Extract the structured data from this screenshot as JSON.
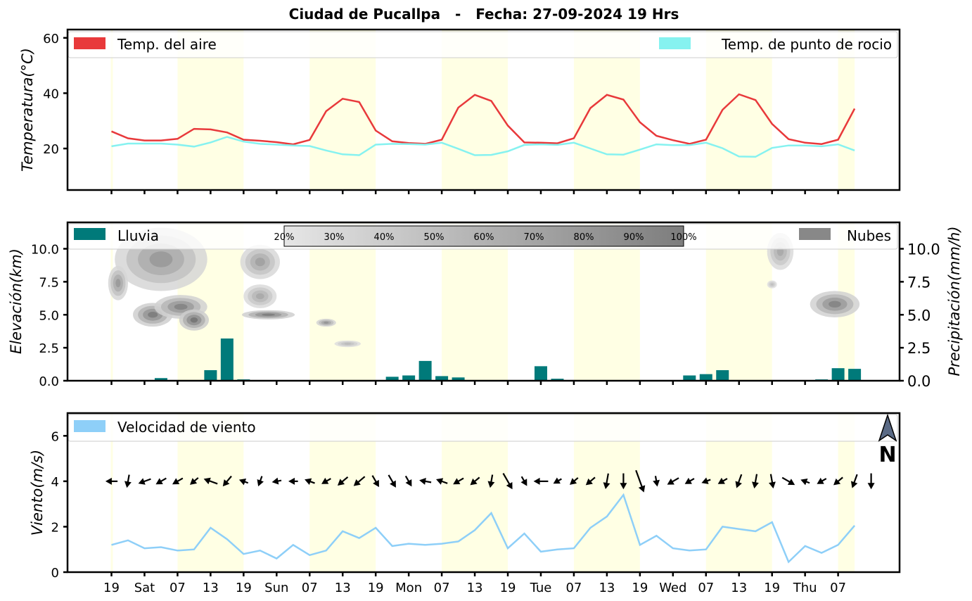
{
  "title": "Ciudad de Pucallpa   -   Fecha: 27-09-2024 19 Hrs",
  "x_ticks": [
    "19",
    "Sat",
    "07",
    "13",
    "19",
    "Sun",
    "07",
    "13",
    "19",
    "Mon",
    "07",
    "13",
    "19",
    "Tue",
    "07",
    "13",
    "19",
    "Wed",
    "07",
    "13",
    "19",
    "Thu",
    "07"
  ],
  "chart_data": [
    {
      "type": "line",
      "ylabel": "Temperatura(°C)",
      "ylim": [
        5,
        63
      ],
      "y_ticks": [
        20,
        40,
        60
      ],
      "legend": {
        "left": "Temp. del aire",
        "right": "Temp. de punto de rocio"
      },
      "colors": {
        "air": "#e8393b",
        "dew": "#86f2f0",
        "band": "#ffffe4"
      },
      "series": [
        {
          "name": "Temp. del aire",
          "values": [
            26.2,
            23.7,
            22.9,
            22.9,
            23.5,
            27.1,
            26.9,
            25.8,
            23.2,
            22.8,
            22.3,
            21.5,
            23.1,
            33.5,
            38.0,
            36.8,
            26.5,
            22.6,
            22.0,
            21.7,
            23.2,
            34.8,
            39.4,
            37.2,
            28.3,
            22.2,
            22.1,
            21.9,
            23.7,
            34.6,
            39.4,
            37.7,
            29.5,
            24.6,
            23.0,
            21.7,
            23.2,
            34.0,
            39.6,
            37.5,
            28.9,
            23.4,
            22.1,
            21.6,
            23.2,
            34.4
          ]
        },
        {
          "name": "Temp. de punto de rocio",
          "values": [
            20.8,
            21.8,
            21.8,
            21.8,
            21.4,
            20.7,
            22.2,
            24.2,
            22.5,
            21.7,
            21.4,
            21.1,
            20.9,
            19.3,
            17.9,
            17.6,
            21.4,
            21.7,
            21.6,
            21.4,
            22.1,
            19.9,
            17.6,
            17.7,
            19.0,
            21.3,
            21.5,
            21.3,
            22.1,
            20.0,
            17.9,
            17.8,
            19.6,
            21.5,
            21.2,
            21.2,
            22.1,
            20.1,
            17.1,
            17.0,
            20.2,
            21.1,
            21.1,
            20.8,
            21.5,
            19.3
          ]
        }
      ]
    },
    {
      "type": "bar",
      "ylabel": "Elevación(km)",
      "ylabel_right": "Precipitación(mm/h)",
      "ylim": [
        0,
        12
      ],
      "y_ticks": [
        "0.0",
        "2.5",
        "5.0",
        "7.5",
        "10.0"
      ],
      "y_tick_values": [
        0,
        2.5,
        5,
        7.5,
        10
      ],
      "legend": {
        "left": "Lluvia",
        "right": "Nubes"
      },
      "colorbar_labels": [
        "20%",
        "30%",
        "40%",
        "50%",
        "60%",
        "70%",
        "80%",
        "90%",
        "100%"
      ],
      "colors": {
        "rain": "#007a7a",
        "cloud": "#888888"
      },
      "rain_values": [
        0,
        0,
        0,
        0.2,
        0,
        0,
        0.8,
        3.2,
        0.1,
        0,
        0,
        0,
        0,
        0,
        0,
        0,
        0,
        0.3,
        0.4,
        1.5,
        0.35,
        0.25,
        0,
        0,
        0,
        0,
        1.1,
        0.15,
        0,
        0,
        0,
        0,
        0,
        0,
        0,
        0.4,
        0.5,
        0.8,
        0,
        0,
        0,
        0,
        0,
        0.1,
        0.95,
        0.9
      ],
      "clouds": [
        {
          "x": 3.0,
          "y": 9.2,
          "rx": 2.8,
          "ry": 2.4,
          "d": 0.55
        },
        {
          "x": 2.5,
          "y": 5.0,
          "rx": 1.2,
          "ry": 0.9,
          "d": 0.75
        },
        {
          "x": 4.2,
          "y": 5.6,
          "rx": 1.6,
          "ry": 0.9,
          "d": 0.7
        },
        {
          "x": 5.0,
          "y": 4.6,
          "rx": 0.9,
          "ry": 0.8,
          "d": 0.8
        },
        {
          "x": 0.4,
          "y": 7.4,
          "rx": 0.6,
          "ry": 1.3,
          "d": 0.55
        },
        {
          "x": 9.0,
          "y": 9.0,
          "rx": 1.2,
          "ry": 1.3,
          "d": 0.5
        },
        {
          "x": 9.0,
          "y": 6.4,
          "rx": 1.0,
          "ry": 0.9,
          "d": 0.45
        },
        {
          "x": 9.5,
          "y": 5.0,
          "rx": 1.6,
          "ry": 0.35,
          "d": 0.75
        },
        {
          "x": 13.0,
          "y": 4.4,
          "rx": 0.6,
          "ry": 0.3,
          "d": 0.6
        },
        {
          "x": 14.3,
          "y": 2.8,
          "rx": 0.8,
          "ry": 0.25,
          "d": 0.35
        },
        {
          "x": 40.5,
          "y": 9.8,
          "rx": 0.8,
          "ry": 1.4,
          "d": 0.45
        },
        {
          "x": 40.0,
          "y": 7.3,
          "rx": 0.3,
          "ry": 0.3,
          "d": 0.3
        },
        {
          "x": 43.8,
          "y": 5.8,
          "rx": 1.5,
          "ry": 1.0,
          "d": 0.7
        }
      ]
    },
    {
      "type": "line",
      "ylabel": "Viento(m/s)",
      "ylim": [
        0,
        7
      ],
      "y_ticks": [
        0,
        2,
        4,
        6
      ],
      "legend": {
        "left": "Velocidad de viento"
      },
      "north_label": "N",
      "colors": {
        "wind": "#8ecff8",
        "arrow": "#000000"
      },
      "series": [
        {
          "name": "Velocidad de viento",
          "values": [
            1.2,
            1.4,
            1.05,
            1.1,
            0.95,
            1.0,
            1.95,
            1.45,
            0.8,
            0.95,
            0.6,
            1.2,
            0.75,
            0.95,
            1.8,
            1.5,
            1.95,
            1.15,
            1.25,
            1.2,
            1.25,
            1.35,
            1.85,
            2.6,
            1.05,
            1.7,
            0.9,
            1.0,
            1.05,
            1.95,
            2.45,
            3.4,
            1.2,
            1.6,
            1.05,
            0.95,
            1.0,
            2.0,
            1.9,
            1.8,
            2.2,
            0.45,
            1.15,
            0.85,
            1.2,
            2.05
          ]
        }
      ],
      "wind_arrows": [
        [
          0.4,
          180
        ],
        [
          0.5,
          100
        ],
        [
          0.5,
          160
        ],
        [
          0.4,
          150
        ],
        [
          0.4,
          150
        ],
        [
          0.3,
          140
        ],
        [
          0.6,
          200
        ],
        [
          0.5,
          130
        ],
        [
          0.2,
          200
        ],
        [
          0.3,
          110
        ],
        [
          0.2,
          170
        ],
        [
          0.2,
          180
        ],
        [
          0.3,
          200
        ],
        [
          0.3,
          150
        ],
        [
          0.5,
          140
        ],
        [
          0.6,
          140
        ],
        [
          0.5,
          60
        ],
        [
          0.6,
          60
        ],
        [
          0.4,
          60
        ],
        [
          0.4,
          190
        ],
        [
          0.4,
          200
        ],
        [
          0.4,
          150
        ],
        [
          0.4,
          140
        ],
        [
          0.5,
          100
        ],
        [
          0.9,
          60
        ],
        [
          0.3,
          60
        ],
        [
          0.6,
          180
        ],
        [
          0.2,
          150
        ],
        [
          0.3,
          140
        ],
        [
          0.4,
          140
        ],
        [
          0.7,
          100
        ],
        [
          0.7,
          90
        ],
        [
          1.3,
          70
        ],
        [
          0.3,
          80
        ],
        [
          0.5,
          150
        ],
        [
          0.3,
          150
        ],
        [
          0.2,
          160
        ],
        [
          0.3,
          150
        ],
        [
          0.6,
          110
        ],
        [
          0.6,
          100
        ],
        [
          0.6,
          80
        ],
        [
          0.6,
          30
        ],
        [
          0.2,
          200
        ],
        [
          0.3,
          150
        ],
        [
          0.4,
          140
        ],
        [
          0.6,
          110
        ],
        [
          0.7,
          90
        ]
      ]
    }
  ]
}
